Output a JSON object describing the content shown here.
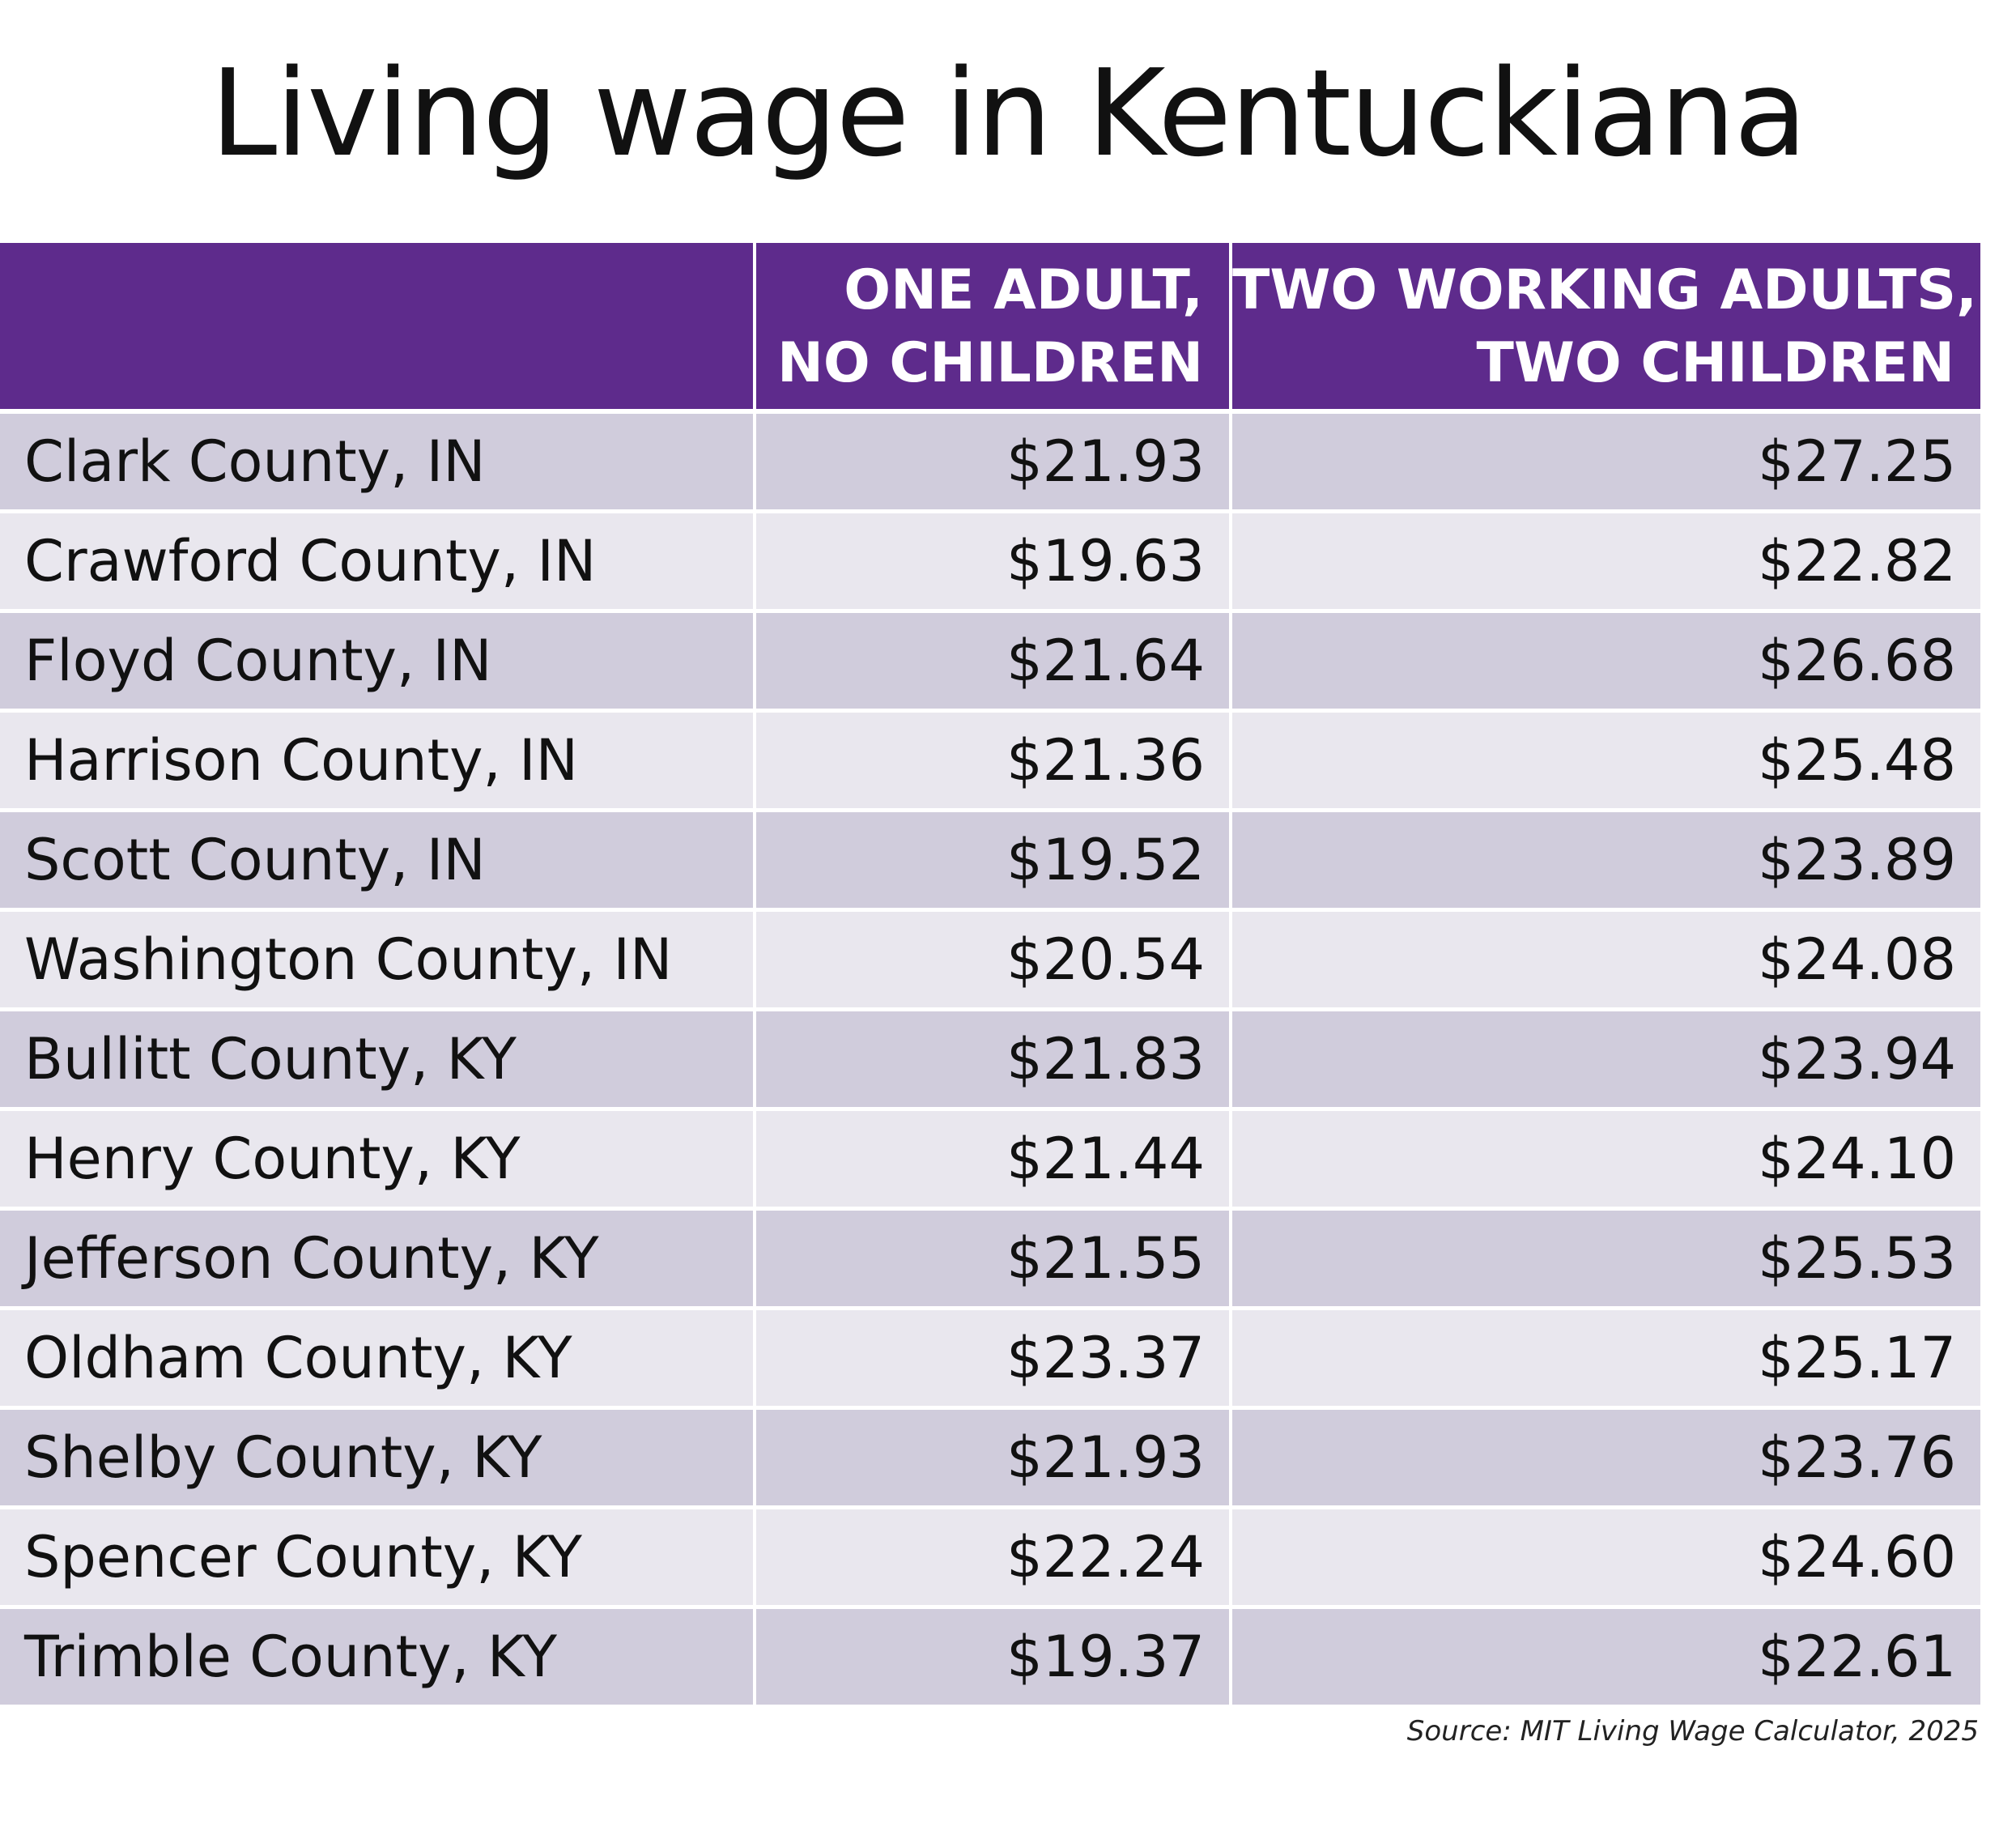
{
  "title": "Living wage in Kentuckiana",
  "source": "Source: MIT Living Wage Calculator, 2025",
  "colors": {
    "header_bg": "#5e2b8c",
    "header_text": "#ffffff",
    "row_odd": "#d0ccdc",
    "row_even": "#e9e7ee"
  },
  "chart_data": {
    "type": "table",
    "title": "Living wage in Kentuckiana",
    "columns": [
      {
        "line1": "",
        "line2": ""
      },
      {
        "line1": "ONE ADULT,",
        "line2": "NO CHILDREN"
      },
      {
        "line1": "TWO WORKING ADULTS,",
        "line2": "TWO CHILDREN"
      }
    ],
    "rows": [
      {
        "county": "Clark County, IN",
        "one_adult": "$21.93",
        "two_adults": "$27.25"
      },
      {
        "county": "Crawford County, IN",
        "one_adult": "$19.63",
        "two_adults": "$22.82"
      },
      {
        "county": "Floyd County, IN",
        "one_adult": "$21.64",
        "two_adults": "$26.68"
      },
      {
        "county": "Harrison County, IN",
        "one_adult": "$21.36",
        "two_adults": "$25.48"
      },
      {
        "county": "Scott County, IN",
        "one_adult": "$19.52",
        "two_adults": "$23.89"
      },
      {
        "county": "Washington County, IN",
        "one_adult": "$20.54",
        "two_adults": "$24.08"
      },
      {
        "county": "Bullitt County, KY",
        "one_adult": "$21.83",
        "two_adults": "$23.94"
      },
      {
        "county": "Henry County, KY",
        "one_adult": "$21.44",
        "two_adults": "$24.10"
      },
      {
        "county": "Jefferson County, KY",
        "one_adult": "$21.55",
        "two_adults": "$25.53"
      },
      {
        "county": "Oldham County, KY",
        "one_adult": "$23.37",
        "two_adults": "$25.17"
      },
      {
        "county": "Shelby County, KY",
        "one_adult": "$21.93",
        "two_adults": "$23.76"
      },
      {
        "county": "Spencer County, KY",
        "one_adult": "$22.24",
        "two_adults": "$24.60"
      },
      {
        "county": "Trimble County, KY",
        "one_adult": "$19.37",
        "two_adults": "$22.61"
      }
    ]
  }
}
